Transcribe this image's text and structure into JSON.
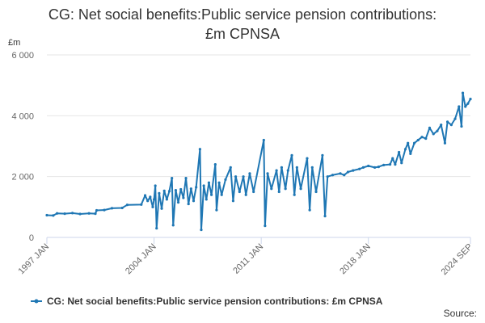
{
  "title_lines": [
    "CG: Net social benefits:Public service pension contributions:",
    "£m CPNSA"
  ],
  "source_label": "Source:",
  "chart_data": {
    "type": "line",
    "title": "CG: Net social benefits:Public service pension contributions: £m CPNSA",
    "ylabel": "£m",
    "xlabel": "",
    "ylim": [
      0,
      6000
    ],
    "y_ticks": [
      0,
      2000,
      4000,
      6000
    ],
    "y_tick_labels": [
      "0",
      "2 000",
      "4 000",
      "6 000"
    ],
    "x_range": [
      "1997-01",
      "2024-09"
    ],
    "x_ticks": [
      "1997-01",
      "2004-01",
      "2011-01",
      "2018-01",
      "2024-09"
    ],
    "x_tick_labels": [
      "1997 JAN",
      "2004 JAN",
      "2011 JAN",
      "2018 JAN",
      "2024 SEP"
    ],
    "grid": "horizontal",
    "legend_position": "bottom",
    "color": "#1f77b4",
    "series": [
      {
        "name": "CG: Net social benefits:Public service pension contributions: £m CPNSA",
        "values": [
          [
            "1997-01",
            730
          ],
          [
            "1997-06",
            720
          ],
          [
            "1997-09",
            790
          ],
          [
            "1998-03",
            780
          ],
          [
            "1998-09",
            800
          ],
          [
            "1999-03",
            770
          ],
          [
            "1999-10",
            790
          ],
          [
            "2000-03",
            780
          ],
          [
            "2000-04",
            890
          ],
          [
            "2000-10",
            900
          ],
          [
            "2001-04",
            960
          ],
          [
            "2001-12",
            970
          ],
          [
            "2002-04",
            1070
          ],
          [
            "2003-03",
            1080
          ],
          [
            "2003-06",
            1380
          ],
          [
            "2003-08",
            1200
          ],
          [
            "2003-10",
            1330
          ],
          [
            "2003-12",
            1000
          ],
          [
            "2004-01",
            1250
          ],
          [
            "2004-02",
            1700
          ],
          [
            "2004-03",
            300
          ],
          [
            "2004-05",
            1450
          ],
          [
            "2004-07",
            950
          ],
          [
            "2004-09",
            1530
          ],
          [
            "2004-11",
            1250
          ],
          [
            "2005-01",
            1520
          ],
          [
            "2005-03",
            1950
          ],
          [
            "2005-04",
            400
          ],
          [
            "2005-06",
            1550
          ],
          [
            "2005-08",
            1150
          ],
          [
            "2005-10",
            1580
          ],
          [
            "2005-12",
            1300
          ],
          [
            "2006-02",
            1950
          ],
          [
            "2006-04",
            1100
          ],
          [
            "2006-06",
            1600
          ],
          [
            "2006-08",
            1200
          ],
          [
            "2006-10",
            1650
          ],
          [
            "2007-01",
            2900
          ],
          [
            "2007-02",
            250
          ],
          [
            "2007-04",
            1700
          ],
          [
            "2007-06",
            1250
          ],
          [
            "2007-08",
            1800
          ],
          [
            "2007-10",
            1400
          ],
          [
            "2008-01",
            2400
          ],
          [
            "2008-02",
            900
          ],
          [
            "2008-04",
            1800
          ],
          [
            "2008-06",
            1400
          ],
          [
            "2008-09",
            1900
          ],
          [
            "2009-01",
            2300
          ],
          [
            "2009-03",
            1200
          ],
          [
            "2009-05",
            2000
          ],
          [
            "2009-08",
            1500
          ],
          [
            "2009-11",
            2000
          ],
          [
            "2010-01",
            1400
          ],
          [
            "2010-04",
            2100
          ],
          [
            "2010-07",
            1500
          ],
          [
            "2011-03",
            3200
          ],
          [
            "2011-04",
            380
          ],
          [
            "2011-06",
            2100
          ],
          [
            "2011-09",
            1600
          ],
          [
            "2012-01",
            2200
          ],
          [
            "2012-03",
            1500
          ],
          [
            "2012-05",
            2300
          ],
          [
            "2012-08",
            1600
          ],
          [
            "2012-10",
            2200
          ],
          [
            "2013-01",
            2700
          ],
          [
            "2013-03",
            1400
          ],
          [
            "2013-05",
            2300
          ],
          [
            "2013-08",
            1600
          ],
          [
            "2014-01",
            2600
          ],
          [
            "2014-03",
            900
          ],
          [
            "2014-05",
            2300
          ],
          [
            "2014-08",
            1500
          ],
          [
            "2015-01",
            2700
          ],
          [
            "2015-03",
            700
          ],
          [
            "2015-05",
            2000
          ],
          [
            "2015-09",
            2050
          ],
          [
            "2016-03",
            2100
          ],
          [
            "2016-06",
            2050
          ],
          [
            "2016-09",
            2150
          ],
          [
            "2017-01",
            2200
          ],
          [
            "2017-06",
            2250
          ],
          [
            "2017-09",
            2300
          ],
          [
            "2018-01",
            2350
          ],
          [
            "2018-06",
            2300
          ],
          [
            "2018-09",
            2320
          ],
          [
            "2019-01",
            2380
          ],
          [
            "2019-06",
            2400
          ],
          [
            "2019-08",
            2600
          ],
          [
            "2019-10",
            2400
          ],
          [
            "2020-01",
            2800
          ],
          [
            "2020-03",
            2450
          ],
          [
            "2020-06",
            2900
          ],
          [
            "2020-08",
            3100
          ],
          [
            "2020-10",
            2750
          ],
          [
            "2021-01",
            3100
          ],
          [
            "2021-04",
            3200
          ],
          [
            "2021-07",
            3300
          ],
          [
            "2021-10",
            3250
          ],
          [
            "2022-01",
            3600
          ],
          [
            "2022-04",
            3400
          ],
          [
            "2022-07",
            3500
          ],
          [
            "2022-10",
            3700
          ],
          [
            "2023-01",
            3100
          ],
          [
            "2023-03",
            3800
          ],
          [
            "2023-06",
            3700
          ],
          [
            "2023-09",
            3900
          ],
          [
            "2023-12",
            4300
          ],
          [
            "2024-02",
            3650
          ],
          [
            "2024-03",
            4750
          ],
          [
            "2024-05",
            4300
          ],
          [
            "2024-07",
            4400
          ],
          [
            "2024-09",
            4550
          ]
        ]
      }
    ]
  }
}
